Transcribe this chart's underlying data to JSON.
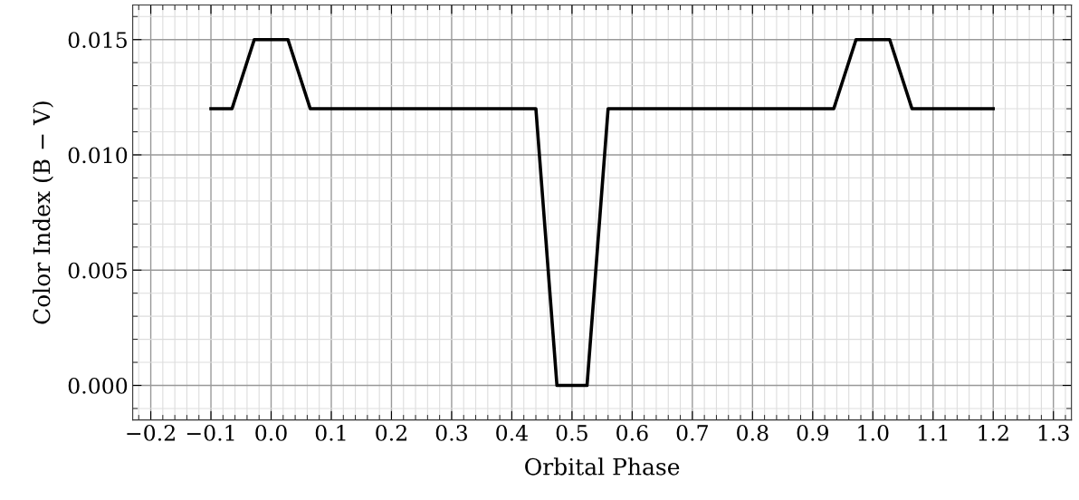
{
  "chart_data": {
    "type": "line",
    "xlabel": "Orbital Phase",
    "ylabel": "Color Index (B − V)",
    "x": [
      -0.1,
      -0.065,
      -0.028,
      0.028,
      0.065,
      0.44,
      0.475,
      0.525,
      0.56,
      0.935,
      0.972,
      1.028,
      1.065,
      1.2
    ],
    "series": [
      {
        "color": "#000000",
        "values": [
          0.012,
          0.012,
          0.015,
          0.015,
          0.012,
          0.012,
          0.0,
          0.0,
          0.012,
          0.012,
          0.015,
          0.015,
          0.012,
          0.012
        ]
      }
    ],
    "xlim": [
      -0.23,
      1.33
    ],
    "ylim": [
      -0.0015,
      0.0165
    ],
    "xticks": [
      {
        "value": -0.2,
        "label": "−0.2"
      },
      {
        "value": -0.1,
        "label": "−0.1"
      },
      {
        "value": 0.0,
        "label": "0.0"
      },
      {
        "value": 0.1,
        "label": "0.1"
      },
      {
        "value": 0.2,
        "label": "0.2"
      },
      {
        "value": 0.3,
        "label": "0.3"
      },
      {
        "value": 0.4,
        "label": "0.4"
      },
      {
        "value": 0.5,
        "label": "0.5"
      },
      {
        "value": 0.6,
        "label": "0.6"
      },
      {
        "value": 0.7,
        "label": "0.7"
      },
      {
        "value": 0.8,
        "label": "0.8"
      },
      {
        "value": 0.9,
        "label": "0.9"
      },
      {
        "value": 1.0,
        "label": "1.0"
      },
      {
        "value": 1.1,
        "label": "1.1"
      },
      {
        "value": 1.2,
        "label": "1.2"
      },
      {
        "value": 1.3,
        "label": "1.3"
      }
    ],
    "yticks": [
      {
        "value": 0.0,
        "label": "0.000"
      },
      {
        "value": 0.005,
        "label": "0.005"
      },
      {
        "value": 0.01,
        "label": "0.010"
      },
      {
        "value": 0.015,
        "label": "0.015"
      }
    ],
    "grid": true,
    "marker": "none",
    "line_style": "solid"
  }
}
